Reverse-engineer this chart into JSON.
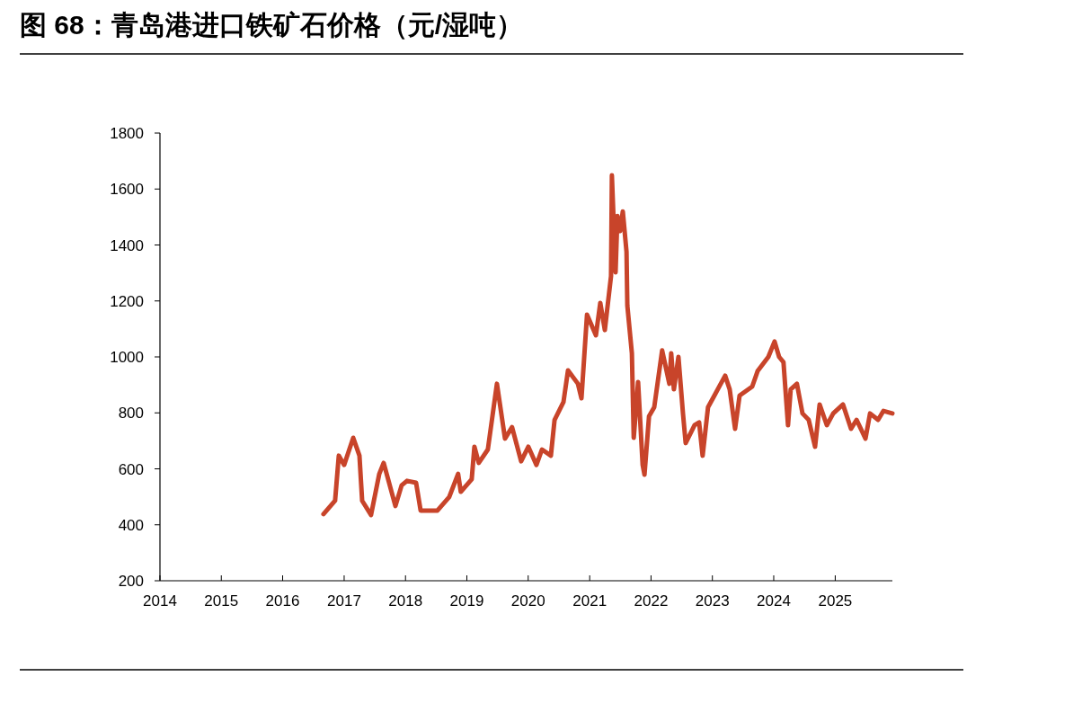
{
  "chart_data": {
    "type": "line",
    "title": "图 68：青岛港进口铁矿石价格（元/湿吨）",
    "x": [
      "2016-08-31",
      "2016-11-08",
      "2016-11-30",
      "2017-01-01",
      "2017-02-24",
      "2017-04-02",
      "2017-04-18",
      "2017-06-10",
      "2017-07-29",
      "2017-08-24",
      "2017-11-02",
      "2017-12-09",
      "2018-01-10",
      "2018-03-05",
      "2018-04-01",
      "2018-07-10",
      "2018-09-18",
      "2018-11-10",
      "2018-11-26",
      "2019-01-30",
      "2019-02-15",
      "2019-03-13",
      "2019-05-06",
      "2019-06-29",
      "2019-08-16",
      "2019-09-27",
      "2019-11-20",
      "2020-01-02",
      "2020-02-19",
      "2020-03-23",
      "2020-05-15",
      "2020-06-06",
      "2020-07-29",
      "2020-08-25",
      "2020-10-23",
      "2020-11-13",
      "2020-12-16",
      "2021-02-07",
      "2021-03-05",
      "2021-04-01",
      "2021-05-08",
      "2021-05-13",
      "2021-06-04",
      "2021-06-15",
      "2021-07-01",
      "2021-07-17",
      "2021-08-08",
      "2021-08-13",
      "2021-09-09",
      "2021-09-20",
      "2021-10-16",
      "2021-11-12",
      "2021-11-23",
      "2021-12-20",
      "2022-01-20",
      "2022-03-08",
      "2022-04-20",
      "2022-05-01",
      "2022-05-17",
      "2022-06-13",
      "2022-07-10",
      "2022-07-26",
      "2022-09-17",
      "2022-10-14",
      "2022-11-04",
      "2022-12-06",
      "2023-01-13",
      "2023-03-18",
      "2023-04-14",
      "2023-05-16",
      "2023-06-12",
      "2023-08-26",
      "2023-09-27",
      "2023-11-30",
      "2024-01-06",
      "2024-02-02",
      "2024-02-28",
      "2024-03-26",
      "2024-04-11",
      "2024-05-18",
      "2024-06-20",
      "2024-07-27",
      "2024-09-03",
      "2024-09-30",
      "2024-11-12",
      "2024-12-20",
      "2025-02-16",
      "2025-04-05",
      "2025-05-08",
      "2025-06-30",
      "2025-07-27",
      "2025-09-13",
      "2025-10-15",
      "2025-12-07"
    ],
    "series": [
      {
        "color": "#c8442a",
        "values": [
          438,
          486,
          647,
          614,
          711,
          647,
          486,
          435,
          582,
          621,
          467,
          541,
          557,
          550,
          451,
          451,
          499,
          582,
          518,
          563,
          679,
          621,
          669,
          904,
          708,
          749,
          627,
          679,
          614,
          669,
          647,
          775,
          839,
          952,
          904,
          852,
          1151,
          1077,
          1193,
          1096,
          1289,
          1649,
          1302,
          1504,
          1450,
          1520,
          1376,
          1183,
          1013,
          711,
          910,
          614,
          579,
          788,
          820,
          1023,
          904,
          1013,
          884,
          1000,
          798,
          692,
          756,
          766,
          647,
          820,
          862,
          933,
          884,
          743,
          862,
          894,
          949,
          1000,
          1055,
          1000,
          981,
          756,
          884,
          904,
          798,
          775,
          679,
          830,
          756,
          798,
          830,
          743,
          775,
          708,
          798,
          775,
          807,
          798
        ]
      }
    ],
    "xlim": [
      "2014-01-01",
      "2025-12-07"
    ],
    "xticks": [
      "2014",
      "2015",
      "2016",
      "2017",
      "2018",
      "2019",
      "2020",
      "2021",
      "2022",
      "2023",
      "2024",
      "2025"
    ],
    "ylim": [
      200,
      1800
    ],
    "yticks": [
      200,
      400,
      600,
      800,
      1000,
      1200,
      1400,
      1600,
      1800
    ]
  }
}
